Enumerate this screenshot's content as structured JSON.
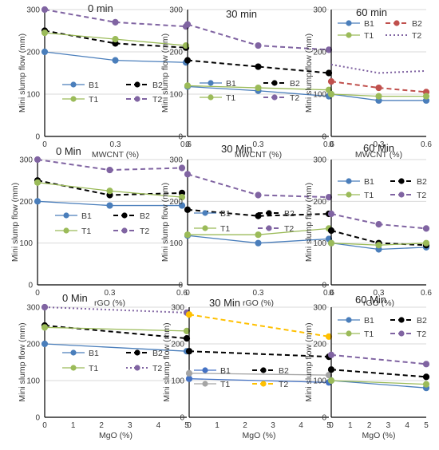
{
  "chart_data": [
    {
      "type": "line",
      "title": "0 min",
      "xlabel": "MWCNT (%)",
      "ylabel": "Mini slump flow (mm)",
      "x": [
        0,
        0.3,
        0.6
      ],
      "xticks": [
        "0",
        "0.3",
        "0.6"
      ],
      "ylim": [
        0,
        300
      ],
      "yticks": [
        0,
        100,
        200,
        300
      ],
      "legend_position": "lower-right",
      "series": [
        {
          "name": "B1",
          "values": [
            200,
            180,
            175
          ],
          "color": "#4a7ebb",
          "dash": "solid",
          "marker": "circle"
        },
        {
          "name": "B2",
          "values": [
            250,
            220,
            210
          ],
          "color": "#000000",
          "dash": "dashed",
          "marker": "circle"
        },
        {
          "name": "T1",
          "values": [
            245,
            230,
            215
          ],
          "color": "#9bbb59",
          "dash": "solid",
          "marker": "circle"
        },
        {
          "name": "T2",
          "values": [
            300,
            270,
            260
          ],
          "color": "#8064a2",
          "dash": "dashed",
          "marker": "circle"
        }
      ]
    },
    {
      "type": "line",
      "title": "30 min",
      "xlabel": "MWCNT (%)",
      "ylabel": "Mini slump flow (mm)",
      "x": [
        0,
        0.3,
        0.6
      ],
      "xticks": [
        "0",
        "0.3",
        "0.6"
      ],
      "ylim": [
        0,
        300
      ],
      "yticks": [
        0,
        100,
        200,
        300
      ],
      "legend_position": "lower-center",
      "series": [
        {
          "name": "B1",
          "values": [
            118,
            108,
            95
          ],
          "color": "#4a7ebb",
          "dash": "solid",
          "marker": "circle"
        },
        {
          "name": "B2",
          "values": [
            180,
            165,
            150
          ],
          "color": "#000000",
          "dash": "dashed",
          "marker": "circle"
        },
        {
          "name": "T1",
          "values": [
            120,
            115,
            110
          ],
          "color": "#9bbb59",
          "dash": "solid",
          "marker": "circle"
        },
        {
          "name": "T2",
          "values": [
            265,
            215,
            205
          ],
          "color": "#8064a2",
          "dash": "dashed",
          "marker": "circle"
        }
      ]
    },
    {
      "type": "line",
      "title": "60 min",
      "xlabel": "MWCNT (%)",
      "ylabel": "Mini slump flow (mm)",
      "x": [
        0,
        0.3,
        0.6
      ],
      "xticks": [
        "0",
        "0.3",
        "0.6"
      ],
      "ylim": [
        0,
        300
      ],
      "yticks": [
        0,
        100,
        200,
        300
      ],
      "legend_position": "top",
      "series": [
        {
          "name": "B1",
          "values": [
            100,
            85,
            85
          ],
          "color": "#4a7ebb",
          "dash": "solid",
          "marker": "circle"
        },
        {
          "name": "B2",
          "values": [
            130,
            115,
            105
          ],
          "color": "#c0504d",
          "dash": "dashed",
          "marker": "circle"
        },
        {
          "name": "T1",
          "values": [
            100,
            95,
            95
          ],
          "color": "#9bbb59",
          "dash": "solid",
          "marker": "circle"
        },
        {
          "name": "T2",
          "values": [
            170,
            150,
            155
          ],
          "color": "#8064a2",
          "dash": "dotted",
          "marker": "none"
        }
      ]
    },
    {
      "type": "line",
      "title": "0 Min",
      "xlabel": "rGO (%)",
      "ylabel": "Mini slump flow (mm)",
      "x": [
        0,
        0.3,
        0.6
      ],
      "xticks": [
        "0",
        "0.3",
        "0.6"
      ],
      "ylim": [
        0,
        300
      ],
      "yticks": [
        0,
        100,
        200,
        300
      ],
      "legend_position": "lower-right",
      "series": [
        {
          "name": "B1",
          "values": [
            200,
            190,
            190
          ],
          "color": "#4a7ebb",
          "dash": "solid",
          "marker": "circle"
        },
        {
          "name": "B2",
          "values": [
            250,
            215,
            220
          ],
          "color": "#000000",
          "dash": "dashed",
          "marker": "circle"
        },
        {
          "name": "T1",
          "values": [
            245,
            225,
            210
          ],
          "color": "#9bbb59",
          "dash": "solid",
          "marker": "circle"
        },
        {
          "name": "T2",
          "values": [
            300,
            275,
            280
          ],
          "color": "#8064a2",
          "dash": "dashed",
          "marker": "circle"
        }
      ]
    },
    {
      "type": "line",
      "title": "30 Min",
      "xlabel": "rGO (%)",
      "ylabel": "Mini slump flow (mm)",
      "x": [
        0,
        0.3,
        0.6
      ],
      "xticks": [
        "0",
        "0.3",
        "0.6"
      ],
      "ylim": [
        0,
        300
      ],
      "yticks": [
        0,
        100,
        200,
        300
      ],
      "legend_position": "lower-center",
      "series": [
        {
          "name": "B1",
          "values": [
            118,
            100,
            110
          ],
          "color": "#4a7ebb",
          "dash": "solid",
          "marker": "circle"
        },
        {
          "name": "B2",
          "values": [
            180,
            165,
            170
          ],
          "color": "#000000",
          "dash": "dashed",
          "marker": "circle"
        },
        {
          "name": "T1",
          "values": [
            120,
            120,
            135
          ],
          "color": "#9bbb59",
          "dash": "solid",
          "marker": "circle"
        },
        {
          "name": "T2",
          "values": [
            265,
            215,
            210
          ],
          "color": "#8064a2",
          "dash": "dashed",
          "marker": "circle"
        }
      ]
    },
    {
      "type": "line",
      "title": "60 Min",
      "xlabel": "rGO (%)",
      "ylabel": "Mini slump flow (mm)",
      "x": [
        0,
        0.3,
        0.6
      ],
      "xticks": [
        "0",
        "0.3",
        "0.6"
      ],
      "ylim": [
        0,
        300
      ],
      "yticks": [
        0,
        100,
        200,
        300
      ],
      "legend_position": "top",
      "series": [
        {
          "name": "B1",
          "values": [
            100,
            85,
            90
          ],
          "color": "#4a7ebb",
          "dash": "solid",
          "marker": "circle"
        },
        {
          "name": "B2",
          "values": [
            130,
            100,
            95
          ],
          "color": "#000000",
          "dash": "dashed",
          "marker": "circle"
        },
        {
          "name": "T1",
          "values": [
            100,
            95,
            100
          ],
          "color": "#9bbb59",
          "dash": "solid",
          "marker": "circle"
        },
        {
          "name": "T2",
          "values": [
            170,
            145,
            135
          ],
          "color": "#8064a2",
          "dash": "dashed",
          "marker": "circle"
        }
      ]
    },
    {
      "type": "line",
      "title": "0 Min",
      "xlabel": "MgO (%)",
      "ylabel": "Mini slump flow (mm)",
      "x": [
        0,
        5
      ],
      "xticks": [
        "0",
        "1",
        "2",
        "3",
        "4",
        "5"
      ],
      "xlim": [
        0,
        5
      ],
      "ylim": [
        0,
        300
      ],
      "yticks": [
        0,
        100,
        200,
        300
      ],
      "legend_position": "lower-right",
      "series": [
        {
          "name": "B1",
          "values": [
            200,
            180
          ],
          "color": "#4a7ebb",
          "dash": "solid",
          "marker": "circle"
        },
        {
          "name": "B2",
          "values": [
            250,
            215
          ],
          "color": "#000000",
          "dash": "dashed",
          "marker": "circle"
        },
        {
          "name": "T1",
          "values": [
            245,
            235
          ],
          "color": "#9bbb59",
          "dash": "solid",
          "marker": "circle"
        },
        {
          "name": "T2",
          "values": [
            300,
            285
          ],
          "color": "#8064a2",
          "dash": "dotted",
          "marker": "circle"
        }
      ]
    },
    {
      "type": "line",
      "title": "30 Min",
      "xlabel": "MgO (%)",
      "ylabel": "Mini slump flow (mm)",
      "x": [
        0,
        5
      ],
      "xticks": [
        "0",
        "1",
        "2",
        "3",
        "4",
        "5"
      ],
      "xlim": [
        0,
        5
      ],
      "ylim": [
        0,
        300
      ],
      "yticks": [
        0,
        100,
        200,
        300
      ],
      "legend_position": "lower-center",
      "series": [
        {
          "name": "B1",
          "values": [
            105,
            95
          ],
          "color": "#4472c4",
          "dash": "solid",
          "marker": "circle"
        },
        {
          "name": "B2",
          "values": [
            180,
            165
          ],
          "color": "#000000",
          "dash": "dashed",
          "marker": "circle"
        },
        {
          "name": "T1",
          "values": [
            120,
            115
          ],
          "color": "#a5a5a5",
          "dash": "solid",
          "marker": "circle"
        },
        {
          "name": "T2",
          "values": [
            280,
            220
          ],
          "color": "#ffc000",
          "dash": "dashed",
          "marker": "circle"
        }
      ]
    },
    {
      "type": "line",
      "title": "60 Min",
      "xlabel": "MgO (%)",
      "ylabel": "Mini slump flow (mm)",
      "x": [
        0,
        5
      ],
      "xticks": [
        "0",
        "1",
        "2",
        "3",
        "4",
        "5"
      ],
      "xlim": [
        0,
        5
      ],
      "ylim": [
        0,
        300
      ],
      "yticks": [
        0,
        100,
        200,
        300
      ],
      "legend_position": "top",
      "series": [
        {
          "name": "B1",
          "values": [
            100,
            80
          ],
          "color": "#4a7ebb",
          "dash": "solid",
          "marker": "circle"
        },
        {
          "name": "B2",
          "values": [
            130,
            110
          ],
          "color": "#000000",
          "dash": "dashed",
          "marker": "circle"
        },
        {
          "name": "T1",
          "values": [
            100,
            90
          ],
          "color": "#9bbb59",
          "dash": "solid",
          "marker": "circle"
        },
        {
          "name": "T2",
          "values": [
            170,
            145
          ],
          "color": "#8064a2",
          "dash": "dashed",
          "marker": "circle"
        }
      ]
    }
  ]
}
